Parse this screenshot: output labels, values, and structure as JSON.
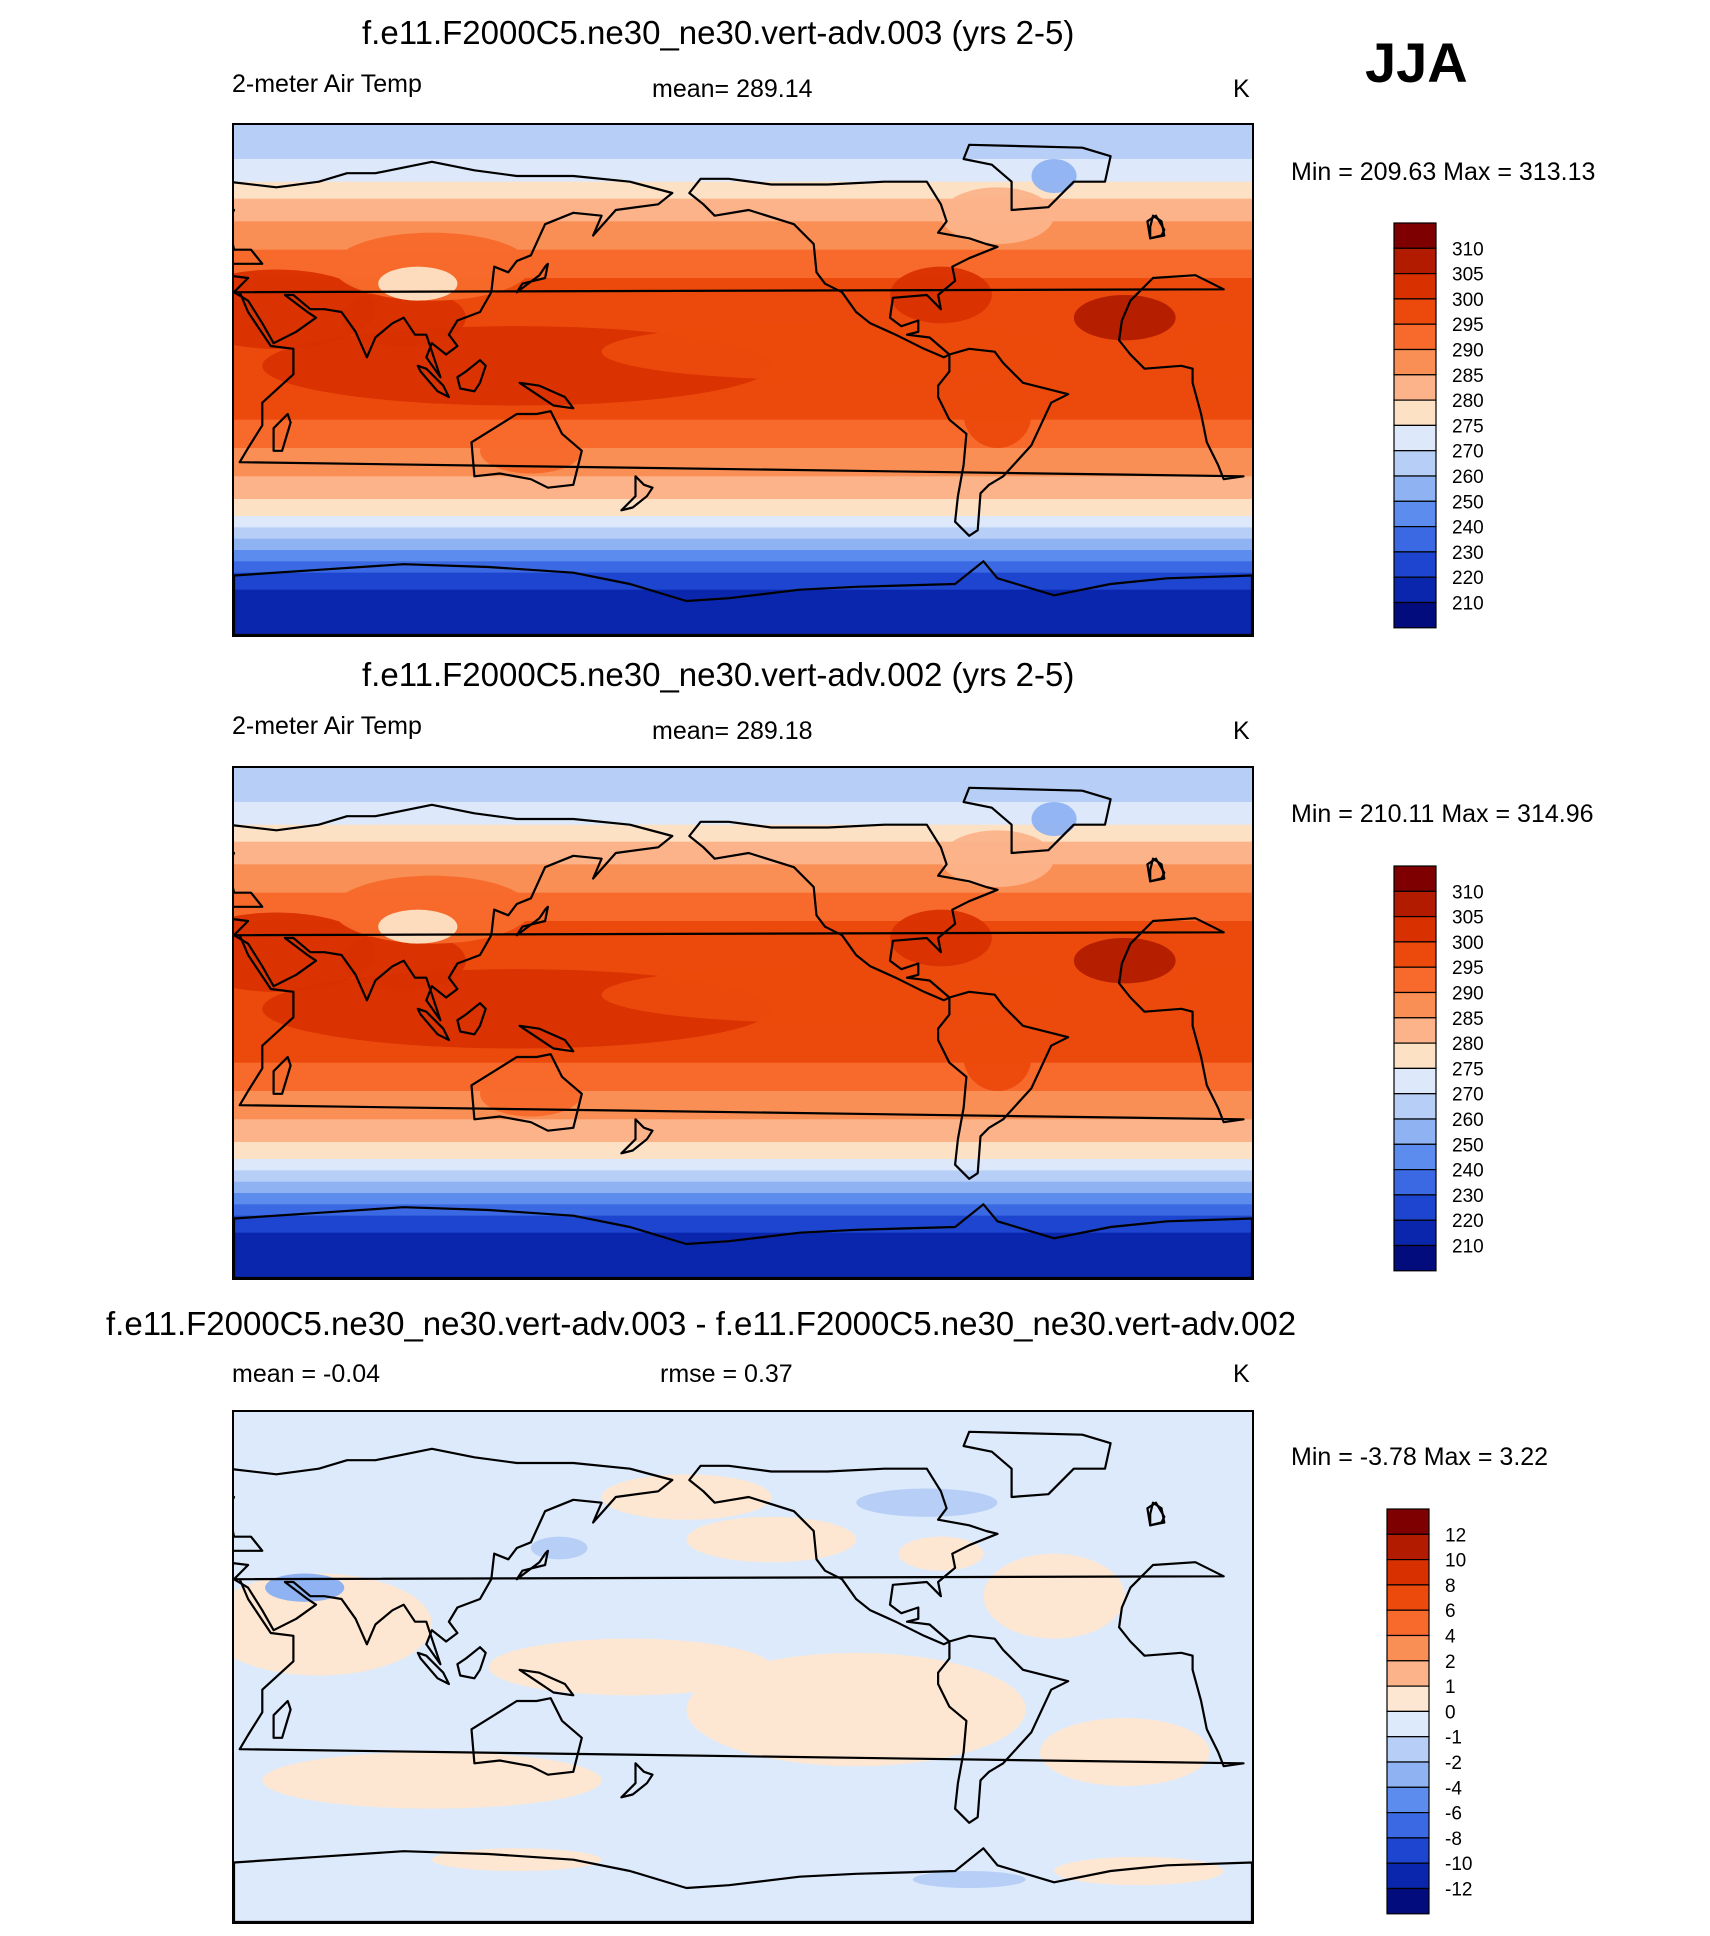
{
  "season": "JJA",
  "panels": [
    {
      "title": "f.e11.F2000C5.ne30_ne30.vert-adv.003 (yrs 2-5)",
      "variable": "2-meter Air Temp",
      "stat": "mean= 289.14",
      "units": "K",
      "minmax": "Min = 209.63 Max = 313.13",
      "colorbar": {
        "labels": [
          "310",
          "305",
          "300",
          "295",
          "290",
          "285",
          "280",
          "275",
          "270",
          "260",
          "250",
          "240",
          "230",
          "220",
          "210"
        ],
        "colors": [
          "#7f0000",
          "#b31b00",
          "#d93000",
          "#ec4a0c",
          "#f76a2b",
          "#fa8f55",
          "#fcb38a",
          "#fde1c5",
          "#dde9fa",
          "#b7cff7",
          "#8fb2f2",
          "#5c8ced",
          "#3a69e3",
          "#1d45cf",
          "#0a26ad",
          "#020c7d"
        ]
      },
      "map_style": "temperature"
    },
    {
      "title": "f.e11.F2000C5.ne30_ne30.vert-adv.002 (yrs 2-5)",
      "variable": "2-meter Air Temp",
      "stat": "mean= 289.18",
      "units": "K",
      "minmax": "Min = 210.11 Max = 314.96",
      "colorbar": {
        "labels": [
          "310",
          "305",
          "300",
          "295",
          "290",
          "285",
          "280",
          "275",
          "270",
          "260",
          "250",
          "240",
          "230",
          "220",
          "210"
        ],
        "colors": [
          "#7f0000",
          "#b31b00",
          "#d93000",
          "#ec4a0c",
          "#f76a2b",
          "#fa8f55",
          "#fcb38a",
          "#fde1c5",
          "#dde9fa",
          "#b7cff7",
          "#8fb2f2",
          "#5c8ced",
          "#3a69e3",
          "#1d45cf",
          "#0a26ad",
          "#020c7d"
        ]
      },
      "map_style": "temperature"
    },
    {
      "title": "f.e11.F2000C5.ne30_ne30.vert-adv.003 - f.e11.F2000C5.ne30_ne30.vert-adv.002",
      "stat": "mean =  -0.04",
      "rmse": "rmse =   0.37",
      "units": "K",
      "minmax": "Min =  -3.78 Max =   3.22",
      "colorbar": {
        "labels": [
          "12",
          "10",
          "8",
          "6",
          "4",
          "2",
          "1",
          "0",
          "-1",
          "-2",
          "-4",
          "-6",
          "-8",
          "-10",
          "-12"
        ],
        "colors": [
          "#7f0000",
          "#b31b00",
          "#d93000",
          "#ec4a0c",
          "#f76a2b",
          "#fa8f55",
          "#fcb38a",
          "#fde7d2",
          "#ddeafb",
          "#b7cff7",
          "#8fb2f2",
          "#5c8ced",
          "#3a69e3",
          "#1d45cf",
          "#0a26ad",
          "#020c7d"
        ]
      },
      "map_style": "difference"
    }
  ]
}
